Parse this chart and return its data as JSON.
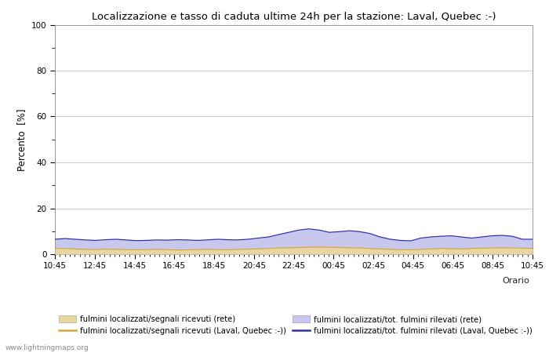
{
  "title": "Localizzazione e tasso di caduta ultime 24h per la stazione: Laval, Quebec :-)",
  "ylabel": "Percento  [%]",
  "xlabel": "Orario",
  "xlim": [
    0,
    48
  ],
  "ylim": [
    0,
    100
  ],
  "yticks": [
    0,
    20,
    40,
    60,
    80,
    100
  ],
  "ytick_minor": [
    10,
    30,
    50,
    70,
    90
  ],
  "xtick_labels": [
    "10:45",
    "12:45",
    "14:45",
    "16:45",
    "18:45",
    "20:45",
    "22:45",
    "00:45",
    "02:45",
    "04:45",
    "06:45",
    "08:45",
    "10:45"
  ],
  "background_color": "#ffffff",
  "plot_bg_color": "#ffffff",
  "grid_color": "#cccccc",
  "fill_rete_color": "#e8d5a0",
  "fill_station_color": "#c8c8ee",
  "line_rete_color": "#d4a830",
  "line_station_color": "#3030aa",
  "watermark": "www.lightningmaps.org",
  "legend_labels": [
    "fulmini localizzati/segnali ricevuti (rete)",
    "fulmini localizzati/segnali ricevuti (Laval, Quebec :-))",
    "fulmini localizzati/tot. fulmini rilevati (rete)",
    "fulmini localizzati/tot. fulmini rilevati (Laval, Quebec :-))"
  ],
  "rete_values": [
    2.5,
    2.5,
    2.3,
    2.1,
    2.0,
    2.2,
    2.1,
    2.0,
    1.9,
    2.0,
    2.1,
    2.0,
    1.8,
    1.9,
    2.0,
    2.1,
    2.0,
    1.9,
    2.1,
    2.2,
    2.3,
    2.5,
    2.7,
    2.8,
    2.9,
    3.0,
    3.1,
    3.0,
    2.9,
    2.8,
    2.7,
    2.5,
    2.3,
    2.1,
    2.0,
    1.9,
    2.1,
    2.3,
    2.5,
    2.4,
    2.3,
    2.5,
    2.6,
    2.7,
    2.8,
    2.7,
    2.6,
    2.5
  ],
  "station_values": [
    6.5,
    6.8,
    6.5,
    6.2,
    6.0,
    6.3,
    6.5,
    6.2,
    5.9,
    6.0,
    6.2,
    6.1,
    6.3,
    6.2,
    6.0,
    6.2,
    6.5,
    6.3,
    6.2,
    6.5,
    7.0,
    7.5,
    8.5,
    9.5,
    10.5,
    11.0,
    10.5,
    9.5,
    9.8,
    10.2,
    9.8,
    9.0,
    7.5,
    6.5,
    6.0,
    5.8,
    7.0,
    7.5,
    7.8,
    8.0,
    7.5,
    7.0,
    7.5,
    8.0,
    8.2,
    7.8,
    6.5,
    6.5
  ]
}
